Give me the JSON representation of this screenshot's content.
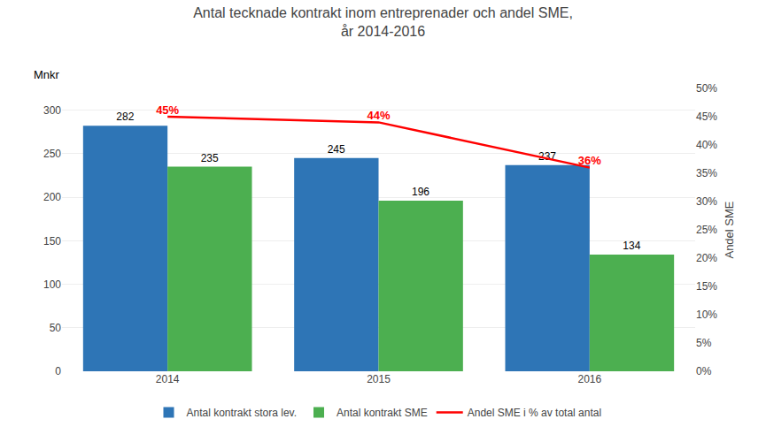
{
  "chart_data": {
    "type": "bar",
    "title": "Antal tecknade kontrakt inom entreprenader och andel SME,\når 2014-2016",
    "categories": [
      "2014",
      "2015",
      "2016"
    ],
    "series": [
      {
        "name": "Antal kontrakt stora lev.",
        "color": "#2E75B6",
        "values": [
          282,
          245,
          237
        ],
        "data_labels": true
      },
      {
        "name": "Antal kontrakt SME",
        "color": "#4CAF50",
        "values": [
          235,
          196,
          134
        ],
        "data_labels": true
      },
      {
        "name": "Andel SME i % av total antal",
        "type": "line",
        "axis": "y2",
        "color": "#FF0000",
        "values": [
          0.45,
          0.44,
          0.36
        ],
        "value_labels": [
          "45%",
          "44%",
          "36%"
        ],
        "data_labels": true
      }
    ],
    "ylabel": "Mnkr",
    "y2label": "Andel SME",
    "ylim": [
      0,
      325
    ],
    "yticks": [
      0,
      50,
      100,
      150,
      200,
      250,
      300
    ],
    "y2lim": [
      0,
      0.5
    ],
    "y2ticks": [
      {
        "value": 0.0,
        "label": "0%"
      },
      {
        "value": 0.05,
        "label": "5%"
      },
      {
        "value": 0.1,
        "label": "10%"
      },
      {
        "value": 0.15,
        "label": "15%"
      },
      {
        "value": 0.2,
        "label": "20%"
      },
      {
        "value": 0.25,
        "label": "25%"
      },
      {
        "value": 0.3,
        "label": "30%"
      },
      {
        "value": 0.35,
        "label": "35%"
      },
      {
        "value": 0.4,
        "label": "40%"
      },
      {
        "value": 0.45,
        "label": "45%"
      },
      {
        "value": 0.5,
        "label": "50%"
      }
    ],
    "grid": true,
    "legend": "bottom"
  }
}
